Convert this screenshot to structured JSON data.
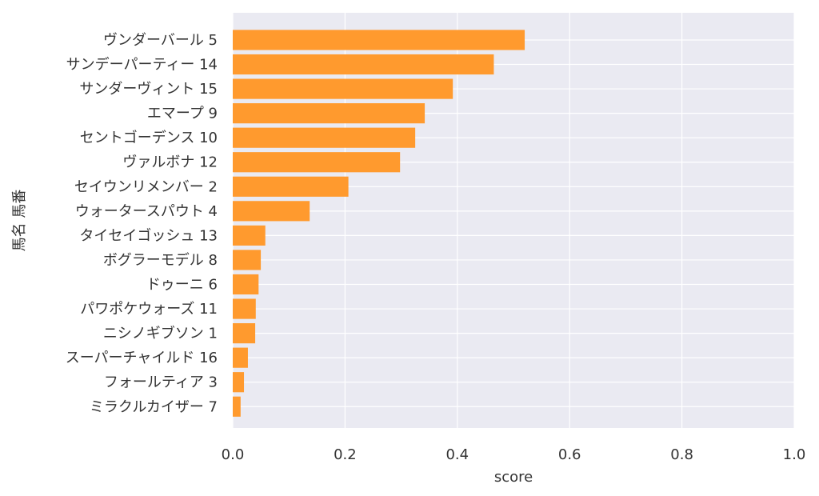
{
  "chart_data": {
    "type": "bar",
    "orientation": "horizontal",
    "title": "",
    "xlabel": "score",
    "ylabel": "馬名 馬番",
    "xlim": [
      0.0,
      1.0
    ],
    "xticks": [
      "0.0",
      "0.2",
      "0.4",
      "0.6",
      "0.8",
      "1.0"
    ],
    "grid": true,
    "bar_color": "#FF9A2E",
    "background_color": "#EAEAF2",
    "categories": [
      "ヴンダーバール 5",
      "サンデーパーティー 14",
      "サンダーヴィント 15",
      "エマープ 9",
      "セントゴーデンス 10",
      "ヴァルボナ 12",
      "セイウンリメンバー 2",
      "ウォータースパウト 4",
      "タイセイゴッシュ 13",
      "ボグラーモデル 8",
      "ドゥーニ 6",
      "パワポケウォーズ 11",
      "ニシノギブソン 1",
      "スーパーチャイルド 16",
      "フォールティア 3",
      "ミラクルカイザー 7"
    ],
    "values": [
      0.52,
      0.465,
      0.392,
      0.342,
      0.325,
      0.298,
      0.206,
      0.137,
      0.058,
      0.05,
      0.046,
      0.041,
      0.04,
      0.027,
      0.02,
      0.014
    ]
  }
}
